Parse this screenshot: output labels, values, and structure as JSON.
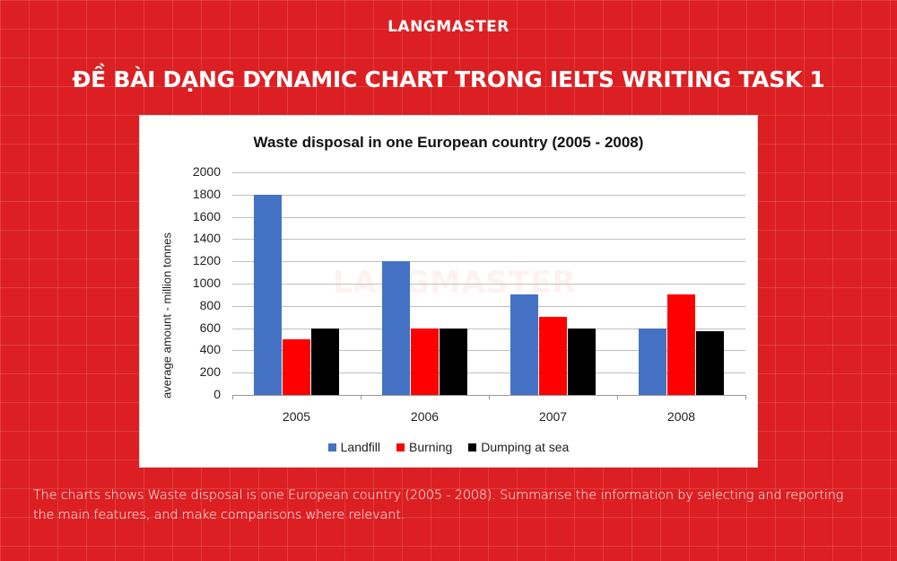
{
  "header": {
    "brand": "LANGMASTER",
    "headline": "ĐỀ BÀI DẠNG DYNAMIC CHART TRONG IELTS WRITING TASK 1"
  },
  "chart_card": {
    "watermark": "LANGMASTER"
  },
  "prompt": {
    "text": "The charts shows Waste disposal is one European country (2005 - 2008). Summarise the information by selecting and reporting the main features, and make comparisons where relevant."
  },
  "chart_data": {
    "type": "bar",
    "title": "Waste disposal in one European country (2005 - 2008)",
    "xlabel": "",
    "ylabel": "average amount - million tonnes",
    "ylim": [
      0,
      2000
    ],
    "yticks": [
      0,
      200,
      400,
      600,
      800,
      1000,
      1200,
      1400,
      1600,
      1800,
      2000
    ],
    "grid": true,
    "legend_position": "bottom",
    "categories": [
      "2005",
      "2006",
      "2007",
      "2008"
    ],
    "series": [
      {
        "name": "Landfill",
        "color": "#4472c4",
        "values": [
          1800,
          1200,
          900,
          600
        ]
      },
      {
        "name": "Burning",
        "color": "#ff0000",
        "values": [
          500,
          600,
          700,
          900
        ]
      },
      {
        "name": "Dumping at sea",
        "color": "#000000",
        "values": [
          600,
          600,
          600,
          570
        ]
      }
    ]
  }
}
